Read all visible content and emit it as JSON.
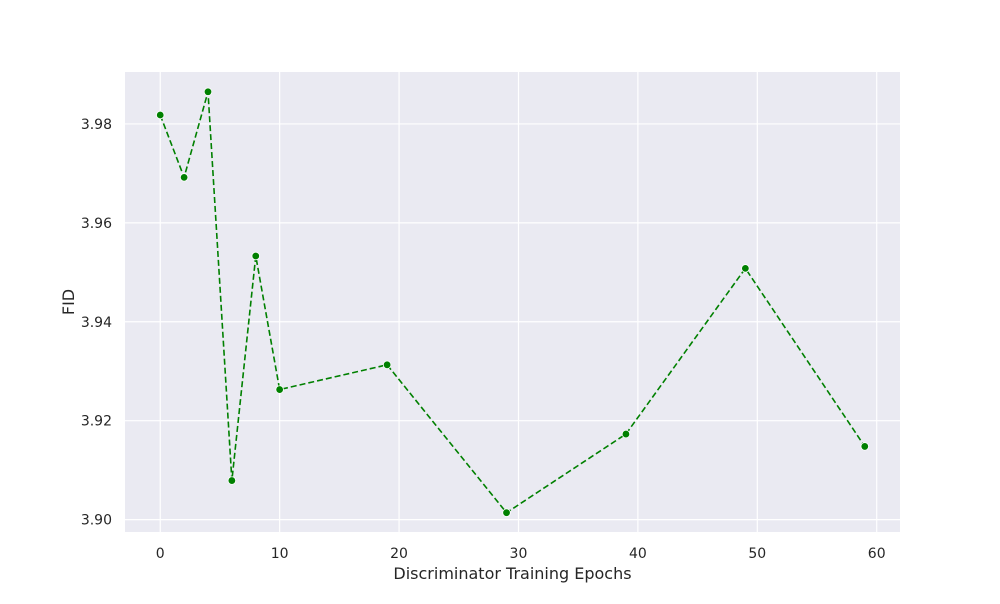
{
  "chart_data": {
    "type": "line",
    "title": "",
    "xlabel": "Discriminator Training Epochs",
    "ylabel": "FID",
    "xlim": [
      -2.95,
      61.95
    ],
    "ylim": [
      3.8975,
      3.9905
    ],
    "xticks": [
      0,
      10,
      20,
      30,
      40,
      50,
      60
    ],
    "yticks": [
      3.9,
      3.92,
      3.94,
      3.96,
      3.98
    ],
    "xtick_labels": [
      "0",
      "10",
      "20",
      "30",
      "40",
      "50",
      "60"
    ],
    "ytick_labels": [
      "3.90",
      "3.92",
      "3.94",
      "3.96",
      "3.98"
    ],
    "grid": true,
    "background": "#EAEAF2",
    "series": [
      {
        "color": "#008000",
        "linestyle": "dashed",
        "marker": "circle",
        "x": [
          0,
          2,
          4,
          6,
          8,
          10,
          19,
          29,
          39,
          49,
          59
        ],
        "y": [
          3.9818,
          3.9692,
          3.9865,
          3.9079,
          3.9533,
          3.9263,
          3.9313,
          3.9014,
          3.9173,
          3.9508,
          3.9148
        ]
      }
    ]
  }
}
